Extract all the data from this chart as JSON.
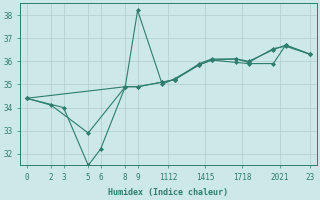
{
  "xlabel": "Humidex (Indice chaleur)",
  "background_color": "#cce8e8",
  "grid_color": "#b0cccc",
  "line_color": "#2e7d6e",
  "spine_color": "#2e7d6e",
  "series": [
    {
      "x": [
        0,
        2,
        5,
        8,
        9,
        11,
        12,
        14,
        15,
        17,
        18,
        20,
        21,
        23
      ],
      "y": [
        34.4,
        34.1,
        32.9,
        34.9,
        34.9,
        35.1,
        35.2,
        35.9,
        36.1,
        36.1,
        36.0,
        36.5,
        36.7,
        36.3
      ]
    },
    {
      "x": [
        0,
        3,
        5,
        6,
        8,
        9,
        11,
        12,
        14,
        15,
        17,
        18,
        20,
        21,
        23
      ],
      "y": [
        34.4,
        34.0,
        31.5,
        32.2,
        34.9,
        38.2,
        35.0,
        35.25,
        35.85,
        36.05,
        35.95,
        35.9,
        35.9,
        36.7,
        36.3
      ]
    },
    {
      "x": [
        0,
        8,
        9,
        11,
        12,
        14,
        15,
        17,
        18,
        20,
        21,
        23
      ],
      "y": [
        34.4,
        34.9,
        34.9,
        35.1,
        35.2,
        35.85,
        36.05,
        36.1,
        35.95,
        36.55,
        36.65,
        36.3
      ]
    }
  ],
  "xlim": [
    -0.5,
    23.5
  ],
  "ylim": [
    31.5,
    38.5
  ],
  "yticks": [
    32,
    33,
    34,
    35,
    36,
    37,
    38
  ],
  "xtick_positions": [
    0,
    2,
    3,
    5,
    6,
    8,
    9,
    11.5,
    14.5,
    17.5,
    20.5,
    23
  ],
  "xtick_labels": [
    "0",
    "2",
    "3",
    "5",
    "6",
    "8",
    "9",
    "1112",
    "1415",
    "1718",
    "2021",
    "23"
  ],
  "marker": "D",
  "markersize": 2,
  "linewidth": 0.8,
  "xlabel_fontsize": 6,
  "tick_fontsize": 5.5
}
